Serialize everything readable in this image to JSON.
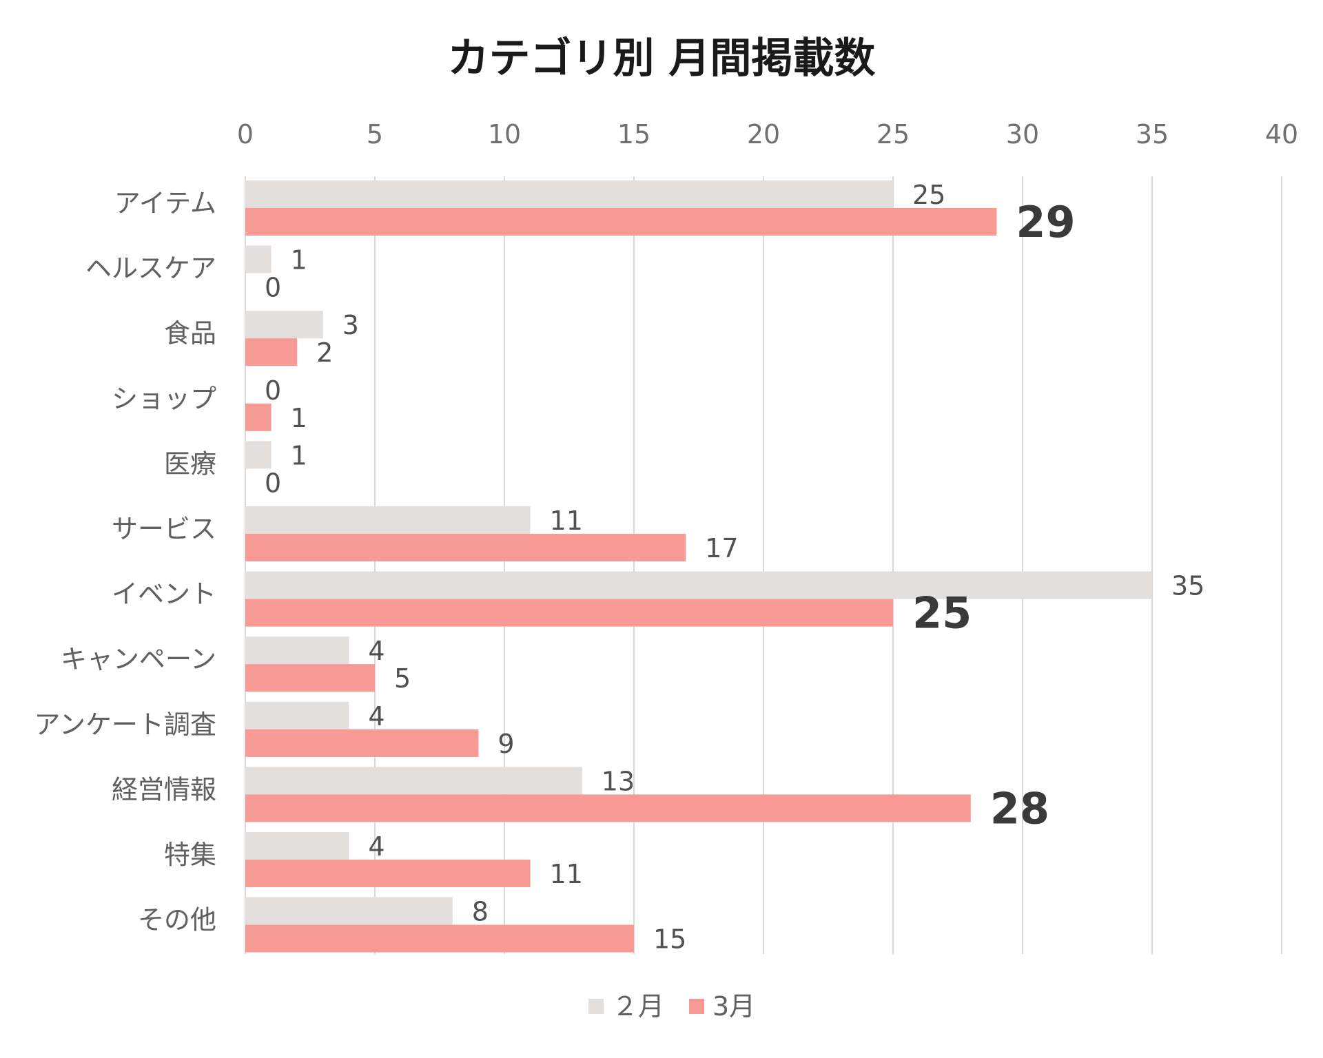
{
  "chart_data": {
    "type": "bar",
    "orientation": "horizontal",
    "title": "カテゴリ別 月間掲載数",
    "categories": [
      "アイテム",
      "ヘルスケア",
      "食品",
      "ショップ",
      "医療",
      "サービス",
      "イベント",
      "キャンペーン",
      "アンケート調査",
      "経営情報",
      "特集",
      "その他"
    ],
    "series": [
      {
        "name": "２月",
        "color": "#e2dfdd",
        "values": [
          25,
          1,
          3,
          0,
          1,
          11,
          35,
          4,
          4,
          13,
          4,
          8
        ]
      },
      {
        "name": "3月",
        "color": "#f79994",
        "values": [
          29,
          0,
          2,
          1,
          0,
          17,
          25,
          5,
          9,
          28,
          11,
          15
        ]
      }
    ],
    "emphasized_labels": [
      {
        "series": 1,
        "category": "アイテム"
      },
      {
        "series": 1,
        "category": "イベント"
      },
      {
        "series": 1,
        "category": "経営情報"
      }
    ],
    "xlim": [
      0,
      40
    ],
    "x_ticks": [
      "0",
      "5",
      "10",
      "15",
      "20",
      "25",
      "30",
      "35",
      "40"
    ],
    "x_axis_position": "top",
    "grid": true,
    "legend_position": "bottom"
  }
}
